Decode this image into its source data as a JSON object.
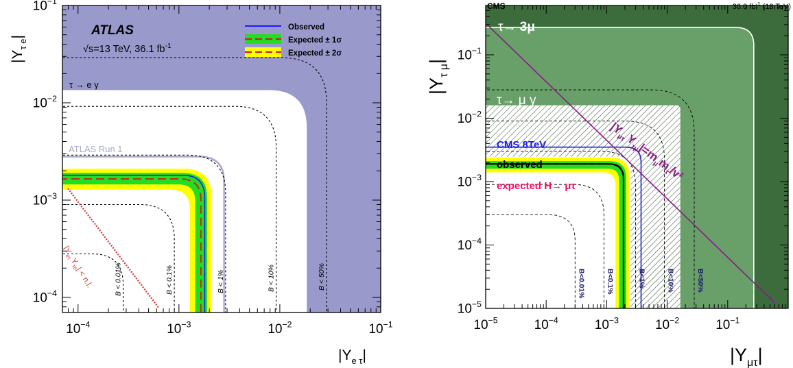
{
  "chart_data": [
    {
      "type": "area",
      "experiment": "ATLAS",
      "energy_label": "√s=13 TeV, 36.1 fb",
      "energy_sup": "-1",
      "xlabel": "|Y",
      "xlabel_sub": "e τ",
      "xlabel_end": "|",
      "ylabel": "|Y",
      "ylabel_sub": "τ e",
      "ylabel_end": "|",
      "x_scale": "log",
      "y_scale": "log",
      "xlim": [
        7e-05,
        0.1
      ],
      "ylim": [
        7e-05,
        0.1
      ],
      "x_ticks": [
        {
          "value": 0.0001,
          "base": "10",
          "exp": "−4"
        },
        {
          "value": 0.001,
          "base": "10",
          "exp": "−3"
        },
        {
          "value": 0.01,
          "base": "10",
          "exp": "−2"
        },
        {
          "value": 0.1,
          "base": "10",
          "exp": "−1"
        }
      ],
      "y_ticks": [
        {
          "value": 0.0001,
          "base": "10",
          "exp": "−4"
        },
        {
          "value": 0.001,
          "base": "10",
          "exp": "−3"
        },
        {
          "value": 0.01,
          "base": "10",
          "exp": "−2"
        },
        {
          "value": 0.1,
          "base": "10",
          "exp": "−1"
        }
      ],
      "legend_position": "top-right",
      "legend": [
        {
          "label": "Observed",
          "style": "line",
          "color": "#1a1aff"
        },
        {
          "label": "Expected ± 1σ",
          "style": "band",
          "color": "#22dd22",
          "line_color": "#cc2222"
        },
        {
          "label": "Expected ± 2σ",
          "style": "band",
          "color": "#ffff00",
          "line_color": "#cc2222"
        }
      ],
      "excluded_region": {
        "label": "τ → e γ",
        "x": 0.0185,
        "y": 0.0135,
        "color": "#9999cc"
      },
      "run1_limit": {
        "label": "ATLAS Run 1",
        "x": 0.0028,
        "y": 0.0028,
        "color": "#a8a8c8"
      },
      "observed_limit": {
        "x": 0.0018,
        "y": 0.0018
      },
      "expected_bands": {
        "plus2sigma": 0.0021,
        "plus1sigma": 0.0019,
        "median": 0.00165,
        "minus1sigma": 0.00145,
        "minus2sigma": 0.00128
      },
      "branching_contours": [
        {
          "label": "B < 0.01%",
          "value": 0.00028
        },
        {
          "label": "B < 0.1%",
          "value": 0.0009
        },
        {
          "label": "B < 1%",
          "value": 0.0029
        },
        {
          "label": "B < 10%",
          "value": 0.0092
        },
        {
          "label": "B < 50%",
          "value": 0.029
        }
      ],
      "naturalness": {
        "label": "|Y",
        "sub": "eτ",
        "mid": "Y",
        "sub2": "τe",
        "end": "| < n.l.",
        "color": "#cc4444"
      }
    },
    {
      "type": "area",
      "experiment": "CMS",
      "lumi_label": "36.0 fb",
      "lumi_sup": "-1",
      "lumi_end": " (13 TeV)",
      "xlabel": "|Y",
      "xlabel_sub": "μτ",
      "xlabel_end": "|",
      "ylabel": "|Y",
      "ylabel_sub": "τ μ",
      "ylabel_end": "|",
      "x_scale": "log",
      "y_scale": "log",
      "xlim": [
        1e-05,
        1.0
      ],
      "ylim": [
        1e-05,
        0.6
      ],
      "x_ticks": [
        {
          "value": 1e-05,
          "base": "10",
          "exp": "−5"
        },
        {
          "value": 0.0001,
          "base": "10",
          "exp": "−4"
        },
        {
          "value": 0.001,
          "base": "10",
          "exp": "−3"
        },
        {
          "value": 0.01,
          "base": "10",
          "exp": "−2"
        },
        {
          "value": 0.1,
          "base": "10",
          "exp": "−1"
        }
      ],
      "y_ticks": [
        {
          "value": 1e-05,
          "base": "10",
          "exp": "−5"
        },
        {
          "value": 0.0001,
          "base": "10",
          "exp": "−4"
        },
        {
          "value": 0.001,
          "base": "10",
          "exp": "−3"
        },
        {
          "value": 0.01,
          "base": "10",
          "exp": "−2"
        },
        {
          "value": 0.1,
          "base": "10",
          "exp": "−1"
        }
      ],
      "tau3mu_region": {
        "label_prefix": "τ→ ",
        "label_bold": "3μ",
        "x": 0.27,
        "y": 0.27,
        "color": "#3c6c3c"
      },
      "taumugamma_region": {
        "label": "τ→ μ γ",
        "x": 0.0165,
        "y": 0.016,
        "color": "#699f69"
      },
      "cms8_limit": {
        "label": "CMS 8TeV",
        "x": 0.0037,
        "y": 0.0035,
        "color": "#2020cc"
      },
      "observed_limit": {
        "label": "observed",
        "x": 0.0019,
        "y": 0.0019
      },
      "expected_limit": {
        "label": "expected H→ μτ",
        "color": "#ee1166"
      },
      "expected_bands": {
        "plus2sigma": 0.0024,
        "plus1sigma": 0.0021,
        "median": 0.0019,
        "minus1sigma": 0.0016,
        "minus2sigma": 0.0014
      },
      "branching_contours": [
        {
          "label": "B<0.01%",
          "value": 0.0003
        },
        {
          "label": "B<0.1%",
          "value": 0.0009
        },
        {
          "label": "B<1%",
          "value": 0.003
        },
        {
          "label": "B<10%",
          "value": 0.009
        },
        {
          "label": "B<50%",
          "value": 0.028
        }
      ],
      "naturalness": {
        "label": "|Y",
        "sub": "μτ",
        "mid": "Y",
        "sub2": "τμ",
        "end": "|=m",
        "sub3": "μ",
        "end2": "m",
        "sub4": "τ",
        "end3": "/v²",
        "color": "#8a1a8a"
      }
    }
  ]
}
